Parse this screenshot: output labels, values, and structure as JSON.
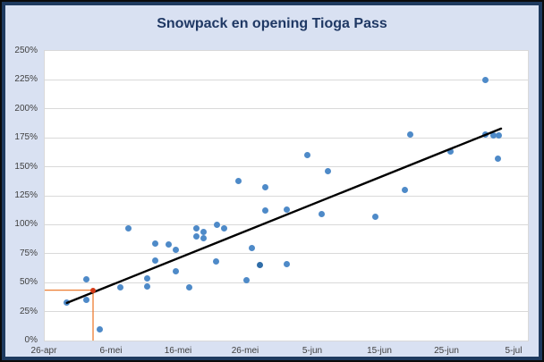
{
  "chart": {
    "title": "Snowpack en opening Tioga Pass"
  },
  "colors": {
    "background": "#d9e1f2",
    "frame_outer": "#0a0a0a",
    "frame_inner": "#1e3a5f",
    "title_text": "#1f3864",
    "plot_background": "#ffffff",
    "gridline": "#d9d9d9",
    "tick_label": "#404040",
    "marker": "#4e8ac8",
    "marker_dark": "#2f6da8",
    "trendline": "#000000",
    "crosshair": "#ed7d31",
    "highlight_marker": "#d63a17"
  },
  "chart_data": {
    "type": "scatter",
    "title": "Snowpack en opening Tioga Pass",
    "grid": "horizontal only",
    "legend": "none",
    "x_axis": {
      "unit": "date (day offset from 26-apr)",
      "range_days": [
        0,
        72
      ],
      "ticks": [
        {
          "day": 0,
          "label": "26-apr"
        },
        {
          "day": 10,
          "label": "6-mei"
        },
        {
          "day": 20,
          "label": "16-mei"
        },
        {
          "day": 30,
          "label": "26-mei"
        },
        {
          "day": 40,
          "label": "5-jun"
        },
        {
          "day": 50,
          "label": "15-jun"
        },
        {
          "day": 60,
          "label": "25-jun"
        },
        {
          "day": 70,
          "label": "5-jul"
        }
      ]
    },
    "y_axis": {
      "unit": "snowpack percent",
      "range": [
        0,
        250
      ],
      "ticks": [
        {
          "value": 0,
          "label": "0%"
        },
        {
          "value": 25,
          "label": "25%"
        },
        {
          "value": 50,
          "label": "50%"
        },
        {
          "value": 75,
          "label": "75%"
        },
        {
          "value": 100,
          "label": "100%"
        },
        {
          "value": 125,
          "label": "125%"
        },
        {
          "value": 150,
          "label": "150%"
        },
        {
          "value": 175,
          "label": "175%"
        },
        {
          "value": 200,
          "label": "200%"
        },
        {
          "value": 225,
          "label": "225%"
        },
        {
          "value": 250,
          "label": "250%"
        }
      ]
    },
    "points": [
      {
        "day": 3.2,
        "date": "29-apr",
        "pct": 33
      },
      {
        "day": 6.2,
        "date": "2-mei",
        "pct": 53
      },
      {
        "day": 6.2,
        "date": "2-mei",
        "pct": 35
      },
      {
        "day": 8.2,
        "date": "4-mei",
        "pct": 10
      },
      {
        "day": 11.3,
        "date": "7-mei",
        "pct": 46
      },
      {
        "day": 12.4,
        "date": "8-mei",
        "pct": 97
      },
      {
        "day": 15.3,
        "date": "11-mei",
        "pct": 54
      },
      {
        "day": 15.3,
        "date": "11-mei",
        "pct": 47
      },
      {
        "day": 16.4,
        "date": "12-mei",
        "pct": 84
      },
      {
        "day": 16.4,
        "date": "12-mei",
        "pct": 69
      },
      {
        "day": 18.4,
        "date": "14-mei",
        "pct": 83
      },
      {
        "day": 19.5,
        "date": "15-mei",
        "pct": 78
      },
      {
        "day": 19.5,
        "date": "15-mei",
        "pct": 60
      },
      {
        "day": 21.5,
        "date": "17-mei",
        "pct": 46
      },
      {
        "day": 22.6,
        "date": "18-mei",
        "pct": 97
      },
      {
        "day": 22.6,
        "date": "18-mei",
        "pct": 90
      },
      {
        "day": 23.7,
        "date": "19-mei",
        "pct": 94
      },
      {
        "day": 23.7,
        "date": "19-mei",
        "pct": 88
      },
      {
        "day": 25.5,
        "date": "21-mei",
        "pct": 68
      },
      {
        "day": 25.6,
        "date": "21-mei",
        "pct": 100
      },
      {
        "day": 26.7,
        "date": "22-mei",
        "pct": 97
      },
      {
        "day": 28.8,
        "date": "24-mei",
        "pct": 138
      },
      {
        "day": 30.0,
        "date": "26-mei",
        "pct": 52
      },
      {
        "day": 30.8,
        "date": "27-mei",
        "pct": 80
      },
      {
        "day": 32.0,
        "date": "28-mei",
        "pct": 65,
        "shade": "dark"
      },
      {
        "day": 32.9,
        "date": "28-mei",
        "pct": 132
      },
      {
        "day": 32.9,
        "date": "28-mei",
        "pct": 112
      },
      {
        "day": 36.0,
        "date": "1-jun",
        "pct": 113
      },
      {
        "day": 36.0,
        "date": "1-jun",
        "pct": 66
      },
      {
        "day": 39.1,
        "date": "4-jun",
        "pct": 160
      },
      {
        "day": 41.2,
        "date": "6-jun",
        "pct": 109
      },
      {
        "day": 42.2,
        "date": "7-jun",
        "pct": 146
      },
      {
        "day": 49.3,
        "date": "14-jun",
        "pct": 107
      },
      {
        "day": 53.6,
        "date": "18-jun",
        "pct": 130
      },
      {
        "day": 54.4,
        "date": "19-jun",
        "pct": 178
      },
      {
        "day": 60.5,
        "date": "25-jun",
        "pct": 163
      },
      {
        "day": 65.7,
        "date": "30-jun",
        "pct": 225
      },
      {
        "day": 65.7,
        "date": "30-jun",
        "pct": 178
      },
      {
        "day": 66.9,
        "date": "1-jul",
        "pct": 177
      },
      {
        "day": 67.5,
        "date": "1-jul",
        "pct": 157
      },
      {
        "day": 67.7,
        "date": "2-jul",
        "pct": 177
      }
    ],
    "highlight_point": {
      "day": 7.2,
      "date": "3-mei",
      "pct": 43.5,
      "crosshair": "orange lines to x-axis and y-axis"
    },
    "trendline": {
      "day_start": 3.3,
      "pct_start": 32.5,
      "day_end": 68.0,
      "pct_end": 183
    }
  }
}
